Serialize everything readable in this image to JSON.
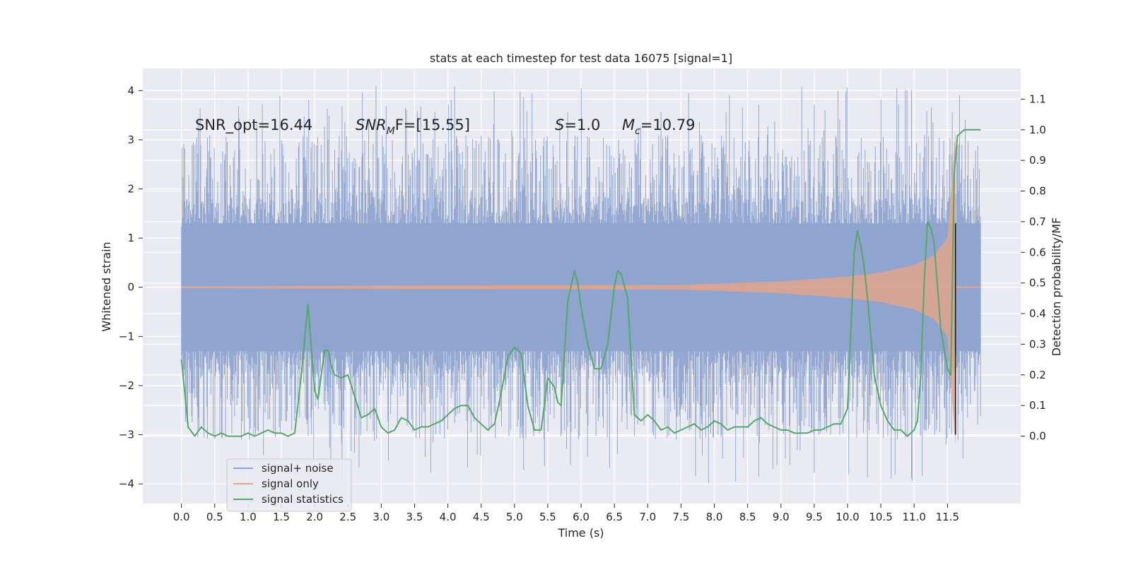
{
  "chart_data": {
    "type": "line",
    "title": "stats at each timestep for test data 16075 [signal=1]",
    "xlabel": "Time (s)",
    "ylabel": "Whitened strain",
    "y2label": "Detection probability/MF",
    "xlim": [
      -0.58,
      12.6
    ],
    "ylim": [
      -4.4,
      4.45
    ],
    "y2lim": [
      -0.22,
      1.2
    ],
    "xticks": [
      0.0,
      0.5,
      1.0,
      1.5,
      2.0,
      2.5,
      3.0,
      3.5,
      4.0,
      4.5,
      5.0,
      5.5,
      6.0,
      6.5,
      7.0,
      7.5,
      8.0,
      8.5,
      9.0,
      9.5,
      10.0,
      10.5,
      11.0,
      11.5
    ],
    "xtick_labels": [
      "0.0",
      "0.5",
      "1.0",
      "1.5",
      "2.0",
      "2.5",
      "3.0",
      "3.5",
      "4.0",
      "4.5",
      "5.0",
      "5.5",
      "6.0",
      "6.5",
      "7.0",
      "7.5",
      "8.0",
      "8.5",
      "9.0",
      "9.5",
      "10.0",
      "10.5",
      "11.0",
      "11.5"
    ],
    "yticks": [
      -4,
      -3,
      -2,
      -1,
      0,
      1,
      2,
      3,
      4
    ],
    "ytick_labels": [
      "−4",
      "−3",
      "−2",
      "−1",
      "0",
      "1",
      "2",
      "3",
      "4"
    ],
    "y2ticks": [
      0.0,
      0.1,
      0.2,
      0.3,
      0.4,
      0.5,
      0.6,
      0.7,
      0.8,
      0.9,
      1.0,
      1.1
    ],
    "y2tick_labels": [
      "0.0",
      "0.1",
      "0.2",
      "0.3",
      "0.4",
      "0.5",
      "0.6",
      "0.7",
      "0.8",
      "0.9",
      "1.0",
      "1.1"
    ],
    "grid": true,
    "legend_position": "lower-left",
    "series": [
      {
        "name": "signal+ noise",
        "color": "#8fa4cf",
        "axis": "left",
        "envelope": {
          "x": [
            0.0,
            12.0
          ],
          "ymin": -4.0,
          "ymax": 4.1,
          "typical_abs": 1.3
        }
      },
      {
        "name": "signal only",
        "color": "#e0a58c",
        "axis": "left",
        "chirp_envelope": {
          "x": [
            0.0,
            7.5,
            9.0,
            10.0,
            10.5,
            11.0,
            11.3,
            11.5,
            11.62
          ],
          "amplitude": [
            0.02,
            0.05,
            0.12,
            0.22,
            0.3,
            0.45,
            0.65,
            1.0,
            3.2
          ]
        }
      },
      {
        "name": "signal statistics",
        "color": "#55a868",
        "axis": "right",
        "x": [
          0.0,
          0.1,
          0.2,
          0.3,
          0.4,
          0.5,
          0.6,
          0.7,
          0.8,
          0.9,
          1.0,
          1.1,
          1.2,
          1.3,
          1.4,
          1.5,
          1.6,
          1.7,
          1.8,
          1.9,
          2.0,
          2.05,
          2.1,
          2.15,
          2.2,
          2.25,
          2.3,
          2.4,
          2.5,
          2.6,
          2.7,
          2.8,
          2.9,
          3.0,
          3.1,
          3.2,
          3.3,
          3.4,
          3.5,
          3.6,
          3.7,
          3.8,
          3.9,
          4.0,
          4.1,
          4.2,
          4.3,
          4.4,
          4.5,
          4.6,
          4.7,
          4.8,
          4.9,
          5.0,
          5.1,
          5.2,
          5.3,
          5.4,
          5.5,
          5.6,
          5.65,
          5.7,
          5.8,
          5.9,
          5.95,
          6.0,
          6.1,
          6.2,
          6.3,
          6.4,
          6.5,
          6.55,
          6.6,
          6.7,
          6.8,
          6.9,
          7.0,
          7.1,
          7.2,
          7.3,
          7.4,
          7.5,
          7.6,
          7.7,
          7.8,
          7.9,
          8.0,
          8.1,
          8.2,
          8.3,
          8.4,
          8.5,
          8.6,
          8.7,
          8.8,
          8.9,
          9.0,
          9.1,
          9.2,
          9.3,
          9.4,
          9.5,
          9.6,
          9.7,
          9.8,
          9.9,
          10.0,
          10.1,
          10.15,
          10.2,
          10.25,
          10.3,
          10.4,
          10.5,
          10.6,
          10.7,
          10.8,
          10.9,
          11.0,
          11.05,
          11.1,
          11.15,
          11.2,
          11.25,
          11.3,
          11.4,
          11.5,
          11.55,
          11.6,
          11.65,
          11.7,
          11.75,
          11.8,
          11.9,
          12.0
        ],
        "values": [
          0.25,
          0.03,
          0.0,
          0.03,
          0.01,
          0.0,
          0.01,
          0.0,
          0.0,
          0.0,
          0.01,
          0.0,
          0.01,
          0.02,
          0.01,
          0.01,
          0.0,
          0.01,
          0.2,
          0.43,
          0.15,
          0.12,
          0.2,
          0.28,
          0.28,
          0.23,
          0.2,
          0.19,
          0.2,
          0.13,
          0.06,
          0.07,
          0.09,
          0.03,
          0.01,
          0.02,
          0.06,
          0.05,
          0.02,
          0.03,
          0.03,
          0.04,
          0.05,
          0.07,
          0.09,
          0.1,
          0.1,
          0.06,
          0.04,
          0.02,
          0.04,
          0.14,
          0.26,
          0.29,
          0.27,
          0.1,
          0.02,
          0.02,
          0.19,
          0.16,
          0.11,
          0.1,
          0.44,
          0.54,
          0.5,
          0.42,
          0.3,
          0.22,
          0.22,
          0.3,
          0.49,
          0.54,
          0.53,
          0.45,
          0.07,
          0.05,
          0.07,
          0.05,
          0.02,
          0.03,
          0.01,
          0.02,
          0.03,
          0.04,
          0.02,
          0.03,
          0.05,
          0.04,
          0.02,
          0.03,
          0.03,
          0.03,
          0.05,
          0.06,
          0.04,
          0.03,
          0.02,
          0.02,
          0.01,
          0.01,
          0.01,
          0.02,
          0.02,
          0.03,
          0.04,
          0.04,
          0.09,
          0.6,
          0.67,
          0.62,
          0.55,
          0.45,
          0.2,
          0.1,
          0.05,
          0.02,
          0.02,
          0.0,
          0.02,
          0.05,
          0.2,
          0.5,
          0.7,
          0.68,
          0.63,
          0.35,
          0.22,
          0.2,
          0.85,
          0.98,
          0.99,
          1.0,
          1.0,
          1.0,
          1.0
        ]
      }
    ],
    "vline": {
      "x": 11.62,
      "color": "#111111"
    },
    "annotations": [
      {
        "prefix": "SNR_opt=16.44",
        "math": "",
        "sub": "",
        "suffix": ""
      },
      {
        "prefix": "",
        "math": "SNR",
        "sub": "M",
        "suffix": "F=[15.55]"
      },
      {
        "prefix": "",
        "math": "S",
        "sub": "",
        "suffix": "=1.0"
      },
      {
        "prefix": "",
        "math": "M",
        "sub": "c",
        "suffix": "=10.79"
      }
    ]
  }
}
